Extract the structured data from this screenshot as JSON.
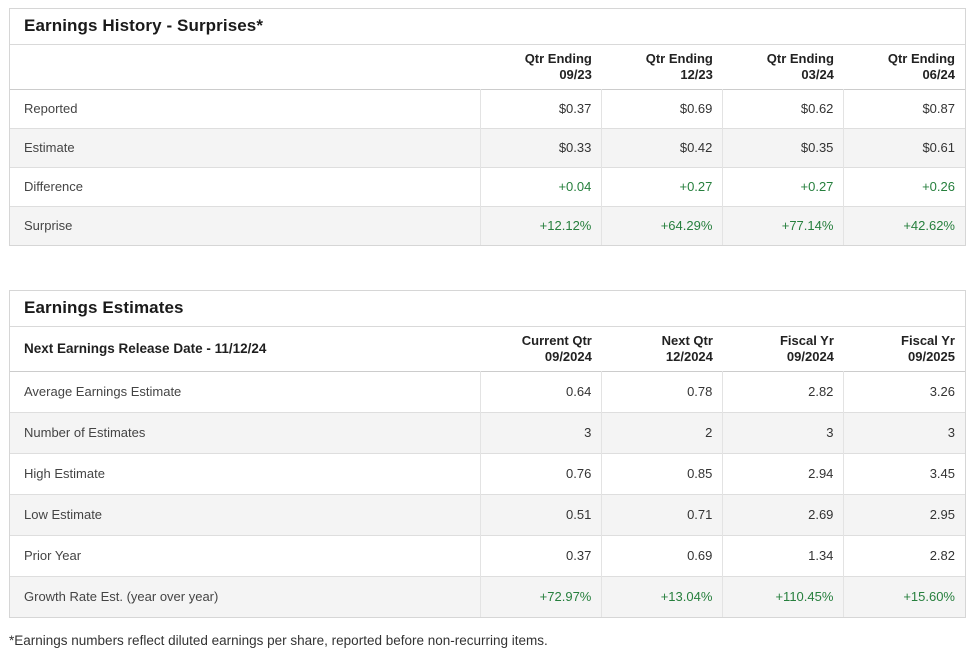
{
  "colors": {
    "positive_green": "#267f3d",
    "alt_row_background": "#f4f4f4",
    "border_gray": "#d9d9d9"
  },
  "earnings_history": {
    "title": "Earnings History - Surprises*",
    "columns": [
      {
        "line1": "Qtr Ending",
        "line2": "09/23"
      },
      {
        "line1": "Qtr Ending",
        "line2": "12/23"
      },
      {
        "line1": "Qtr Ending",
        "line2": "03/24"
      },
      {
        "line1": "Qtr Ending",
        "line2": "06/24"
      }
    ],
    "rows": [
      {
        "label": "Reported",
        "values": [
          "$0.37",
          "$0.69",
          "$0.62",
          "$0.87"
        ]
      },
      {
        "label": "Estimate",
        "values": [
          "$0.33",
          "$0.42",
          "$0.35",
          "$0.61"
        ]
      },
      {
        "label": "Difference",
        "values": [
          "+0.04",
          "+0.27",
          "+0.27",
          "+0.26"
        ]
      },
      {
        "label": "Surprise",
        "values": [
          "+12.12%",
          "+64.29%",
          "+77.14%",
          "+42.62%"
        ]
      }
    ]
  },
  "earnings_estimates": {
    "title": "Earnings Estimates",
    "release_date_label": "Next Earnings Release Date - 11/12/24",
    "columns": [
      {
        "line1": "Current Qtr",
        "line2": "09/2024"
      },
      {
        "line1": "Next Qtr",
        "line2": "12/2024"
      },
      {
        "line1": "Fiscal Yr",
        "line2": "09/2024"
      },
      {
        "line1": "Fiscal Yr",
        "line2": "09/2025"
      }
    ],
    "rows": [
      {
        "label": "Average Earnings Estimate",
        "values": [
          "0.64",
          "0.78",
          "2.82",
          "3.26"
        ]
      },
      {
        "label": "Number of Estimates",
        "values": [
          "3",
          "2",
          "3",
          "3"
        ]
      },
      {
        "label": "High Estimate",
        "values": [
          "0.76",
          "0.85",
          "2.94",
          "3.45"
        ]
      },
      {
        "label": "Low Estimate",
        "values": [
          "0.51",
          "0.71",
          "2.69",
          "2.95"
        ]
      },
      {
        "label": "Prior Year",
        "values": [
          "0.37",
          "0.69",
          "1.34",
          "2.82"
        ]
      },
      {
        "label": "Growth Rate Est. (year over year)",
        "values": [
          "+72.97%",
          "+13.04%",
          "+110.45%",
          "+15.60%"
        ]
      }
    ]
  },
  "footnote": "*Earnings numbers reflect diluted earnings per share, reported before non-recurring items."
}
